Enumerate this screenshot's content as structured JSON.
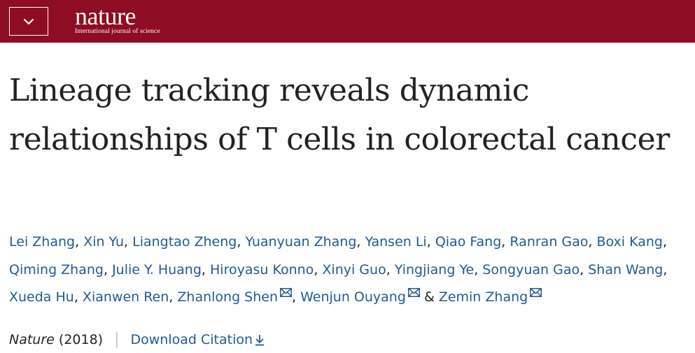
{
  "header": {
    "brand": "nature",
    "tagline": "International journal of science",
    "menu_icon": "chevron-down-icon",
    "background_color": "#8e0c24"
  },
  "article": {
    "title": "Lineage tracking reveals dynamic relationships of T cells in colorectal cancer",
    "authors": [
      {
        "name": "Lei Zhang",
        "sep": ", "
      },
      {
        "name": "Xin Yu",
        "sep": ", "
      },
      {
        "name": "Liangtao Zheng",
        "sep": ", "
      },
      {
        "name": "Yuanyuan Zhang",
        "sep": ", "
      },
      {
        "name": "Yansen Li",
        "sep": ", "
      },
      {
        "name": "Qiao Fang",
        "sep": ", "
      },
      {
        "name": "Ranran Gao",
        "sep": ", "
      },
      {
        "name": "Boxi Kang",
        "sep": ", "
      },
      {
        "name": "Qiming Zhang",
        "sep": ", "
      },
      {
        "name": "Julie Y. Huang",
        "sep": ", "
      },
      {
        "name": "Hiroyasu Konno",
        "sep": ", "
      },
      {
        "name": "Xinyi Guo",
        "sep": ", "
      },
      {
        "name": "Yingjiang Ye",
        "sep": ", "
      },
      {
        "name": "Songyuan Gao",
        "sep": ", "
      },
      {
        "name": "Shan Wang",
        "sep": ", "
      },
      {
        "name": "Xueda Hu",
        "sep": ", "
      },
      {
        "name": "Xianwen Ren",
        "sep": ", "
      },
      {
        "name": "Zhanlong Shen",
        "sep": ", ",
        "corresponding": true
      },
      {
        "name": "Wenjun Ouyang",
        "sep": " & ",
        "corresponding": true
      },
      {
        "name": "Zemin Zhang",
        "sep": "",
        "corresponding": true
      }
    ],
    "journal": "Nature",
    "year": "(2018)",
    "separator": "|",
    "download_label": "Download Citation",
    "download_icon": "download-arrow-icon",
    "mail_icon": "envelope-icon",
    "link_color": "#1f5a96"
  }
}
